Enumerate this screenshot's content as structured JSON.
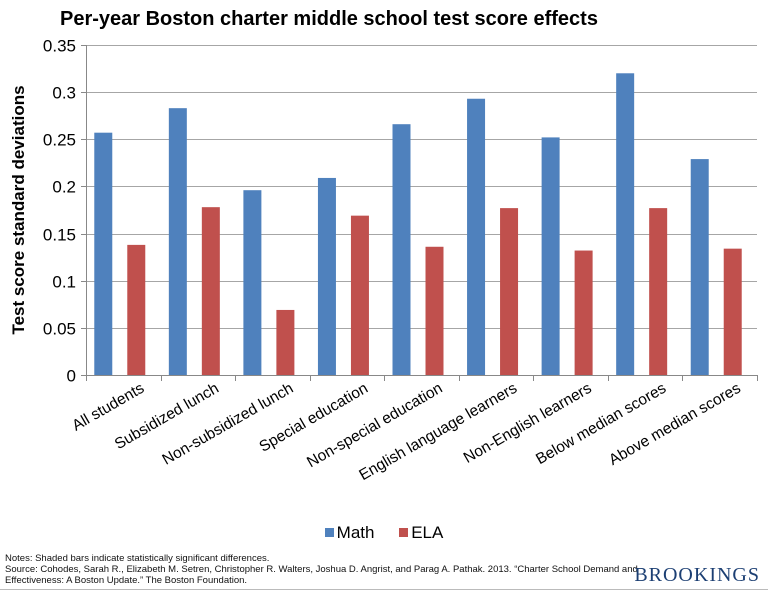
{
  "chart_data": {
    "type": "bar",
    "title": "Per-year Boston charter middle school test score effects",
    "xlabel": "",
    "ylabel": "Test score standard deviations",
    "ylim": [
      0,
      0.35
    ],
    "yticks": [
      "0",
      "0.05",
      "0.1",
      "0.15",
      "0.2",
      "0.25",
      "0.3",
      "0.35"
    ],
    "ytick_values": [
      0,
      0.05,
      0.1,
      0.15,
      0.2,
      0.25,
      0.3,
      0.35
    ],
    "grid": true,
    "legend_position": "bottom",
    "categories": [
      "All students",
      "Subsidized lunch",
      "Non-subsidized lunch",
      "Special education",
      "Non-special education",
      "English language learners",
      "Non-English learners",
      "Below median scores",
      "Above median scores"
    ],
    "series": [
      {
        "name": "Math",
        "color": "#4f81bd",
        "values": [
          0.257,
          0.283,
          0.196,
          0.209,
          0.266,
          0.293,
          0.252,
          0.32,
          0.229
        ]
      },
      {
        "name": "ELA",
        "color": "#c0504d",
        "values": [
          0.138,
          0.178,
          0.069,
          0.169,
          0.136,
          0.177,
          0.132,
          0.177,
          0.134
        ]
      }
    ]
  },
  "notes": {
    "line1": "Notes: Shaded bars indicate statistically significant differences.",
    "line2": "Source:  Cohodes, Sarah R., Elizabeth M. Setren, Christopher R. Walters, Joshua D. Angrist, and Parag A. Pathak. 2013. “Charter School Demand and Effectiveness: A Boston Update.” The Boston Foundation."
  },
  "logo": "BROOKINGS"
}
